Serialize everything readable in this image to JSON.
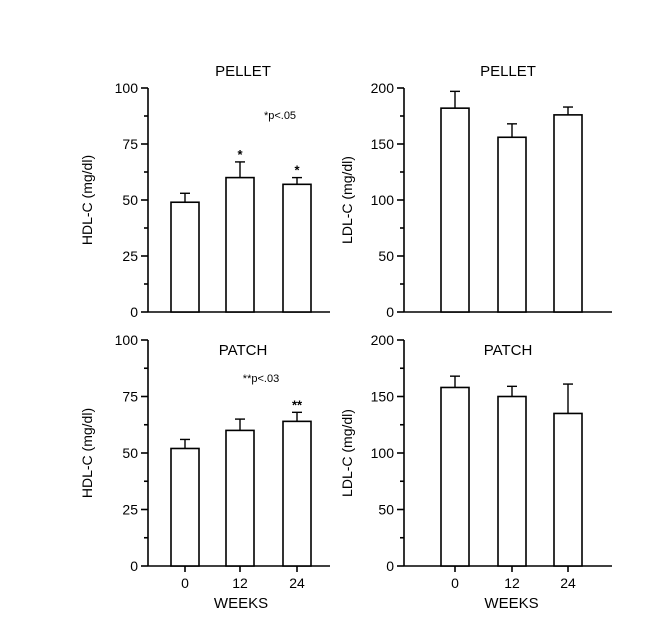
{
  "chart_data": [
    {
      "type": "bar",
      "title": "PELLET",
      "ylabel": "HDL-C (mg/dl)",
      "xlabel": "",
      "categories": [
        "0",
        "12",
        "24"
      ],
      "show_x_tick_labels": false,
      "values": [
        49,
        60,
        57
      ],
      "errors": [
        4,
        7,
        3
      ],
      "markers": [
        "",
        "*",
        "*"
      ],
      "annotation": "*p<.05",
      "ylim": [
        0,
        100
      ],
      "yticks": [
        "0",
        "25",
        "50",
        "75",
        "100"
      ],
      "ytick_values": [
        0,
        25,
        50,
        75,
        100
      ]
    },
    {
      "type": "bar",
      "title": "PELLET",
      "ylabel": "LDL-C (mg/dl)",
      "xlabel": "",
      "categories": [
        "0",
        "12",
        "24"
      ],
      "show_x_tick_labels": false,
      "values": [
        182,
        156,
        176
      ],
      "errors": [
        15,
        12,
        7
      ],
      "markers": [
        "",
        "",
        ""
      ],
      "annotation": "",
      "ylim": [
        0,
        200
      ],
      "yticks": [
        "0",
        "50",
        "100",
        "150",
        "200"
      ],
      "ytick_values": [
        0,
        50,
        100,
        150,
        200
      ]
    },
    {
      "type": "bar",
      "title": "PATCH",
      "ylabel": "HDL-C (mg/dl)",
      "xlabel": "WEEKS",
      "categories": [
        "0",
        "12",
        "24"
      ],
      "show_x_tick_labels": true,
      "values": [
        52,
        60,
        64
      ],
      "errors": [
        4,
        5,
        4
      ],
      "markers": [
        "",
        "",
        "**"
      ],
      "annotation": "**p<.03",
      "ylim": [
        0,
        100
      ],
      "yticks": [
        "0",
        "25",
        "50",
        "75",
        "100"
      ],
      "ytick_values": [
        0,
        25,
        50,
        75,
        100
      ]
    },
    {
      "type": "bar",
      "title": "PATCH",
      "ylabel": "LDL-C (mg/dl)",
      "xlabel": "WEEKS",
      "categories": [
        "0",
        "12",
        "24"
      ],
      "show_x_tick_labels": true,
      "values": [
        158,
        150,
        135
      ],
      "errors": [
        10,
        9,
        26
      ],
      "markers": [
        "",
        "",
        ""
      ],
      "annotation": "",
      "ylim": [
        0,
        200
      ],
      "yticks": [
        "0",
        "50",
        "100",
        "150",
        "200"
      ],
      "ytick_values": [
        0,
        50,
        100,
        150,
        200
      ]
    }
  ]
}
